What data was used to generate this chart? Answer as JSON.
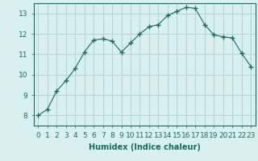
{
  "x": [
    0,
    1,
    2,
    3,
    4,
    5,
    6,
    7,
    8,
    9,
    10,
    11,
    12,
    13,
    14,
    15,
    16,
    17,
    18,
    19,
    20,
    21,
    22,
    23
  ],
  "y": [
    8.0,
    8.3,
    9.2,
    9.7,
    10.3,
    11.1,
    11.7,
    11.75,
    11.65,
    11.1,
    11.55,
    12.0,
    12.35,
    12.45,
    12.9,
    13.1,
    13.3,
    13.25,
    12.45,
    11.95,
    11.85,
    11.8,
    11.05,
    10.4
  ],
  "line_color": "#1a6b5a",
  "marker": "+",
  "marker_size": 4,
  "marker_lw": 1.0,
  "bg_color": "#d8f0f0",
  "grid_color": "#b8d4d4",
  "xlabel": "Humidex (Indice chaleur)",
  "xlim": [
    -0.5,
    23.5
  ],
  "ylim": [
    7.5,
    13.5
  ],
  "yticks": [
    8,
    9,
    10,
    11,
    12,
    13
  ],
  "xticks": [
    0,
    1,
    2,
    3,
    4,
    5,
    6,
    7,
    8,
    9,
    10,
    11,
    12,
    13,
    14,
    15,
    16,
    17,
    18,
    19,
    20,
    21,
    22,
    23
  ],
  "tick_color": "#1a6b5a",
  "label_color": "#1a6b5a",
  "font_size_xlabel": 7,
  "font_size_ticks": 6.5
}
